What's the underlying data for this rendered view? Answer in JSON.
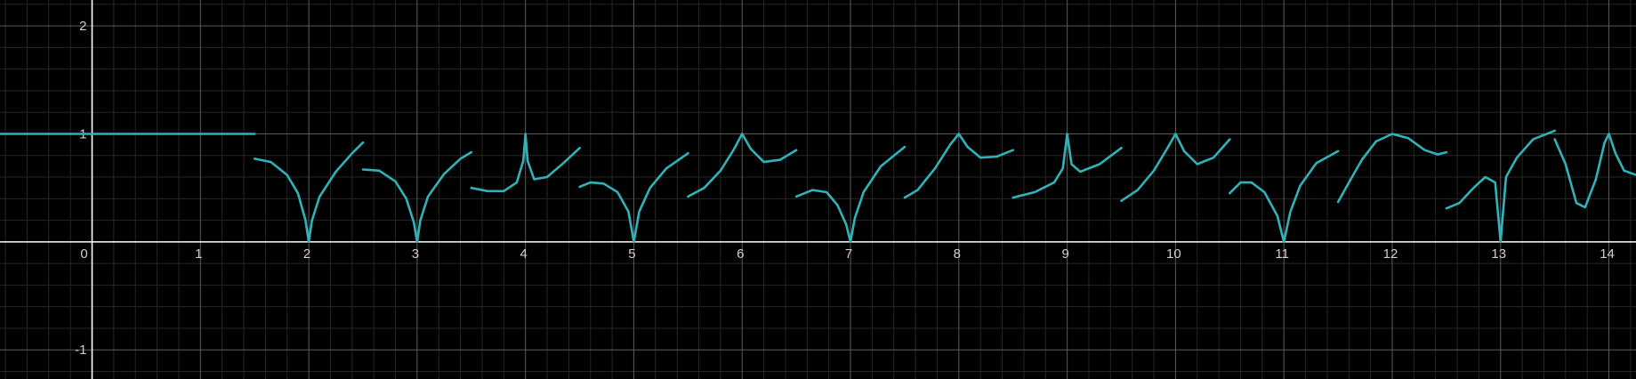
{
  "chart_data": {
    "type": "line",
    "title": "",
    "xlabel": "",
    "ylabel": "",
    "xlim": [
      -0.85,
      14.25
    ],
    "ylim": [
      -1.27,
      2.24
    ],
    "grid": true,
    "background": "#000000",
    "colors": {
      "curve": "#2fb3b9",
      "axis": "#ffffff",
      "major_grid": "#5a5a5a",
      "minor_grid": "#262626"
    },
    "x_ticks": [
      0,
      1,
      2,
      3,
      4,
      5,
      6,
      7,
      8,
      9,
      10,
      11,
      12,
      13,
      14
    ],
    "x_tick_labels": [
      "0",
      "1",
      "2",
      "3",
      "4",
      "5",
      "6",
      "7",
      "8",
      "9",
      "10",
      "11",
      "12",
      "13",
      "14"
    ],
    "y_ticks": [
      -1,
      1,
      2
    ],
    "y_tick_labels": [
      "-1",
      "1",
      "2"
    ],
    "series": [
      {
        "segments": [
          [
            [
              -0.85,
              1.0
            ],
            [
              1.5,
              1.0
            ]
          ],
          [
            [
              1.5,
              0.77
            ],
            [
              1.65,
              0.74
            ],
            [
              1.8,
              0.62
            ],
            [
              1.9,
              0.45
            ],
            [
              1.97,
              0.2
            ],
            [
              2.0,
              0.0
            ],
            [
              2.03,
              0.2
            ],
            [
              2.1,
              0.42
            ],
            [
              2.25,
              0.65
            ],
            [
              2.4,
              0.82
            ],
            [
              2.5,
              0.92
            ]
          ],
          [
            [
              2.5,
              0.67
            ],
            [
              2.65,
              0.66
            ],
            [
              2.8,
              0.56
            ],
            [
              2.9,
              0.4
            ],
            [
              2.97,
              0.18
            ],
            [
              3.0,
              0.0
            ],
            [
              3.03,
              0.2
            ],
            [
              3.1,
              0.42
            ],
            [
              3.25,
              0.63
            ],
            [
              3.4,
              0.77
            ],
            [
              3.5,
              0.83
            ]
          ],
          [
            [
              3.5,
              0.5
            ],
            [
              3.65,
              0.47
            ],
            [
              3.8,
              0.47
            ],
            [
              3.92,
              0.55
            ],
            [
              3.98,
              0.75
            ],
            [
              4.0,
              1.0
            ],
            [
              4.02,
              0.75
            ],
            [
              4.08,
              0.58
            ],
            [
              4.2,
              0.6
            ],
            [
              4.35,
              0.73
            ],
            [
              4.5,
              0.87
            ]
          ],
          [
            [
              4.5,
              0.51
            ],
            [
              4.6,
              0.55
            ],
            [
              4.72,
              0.54
            ],
            [
              4.85,
              0.46
            ],
            [
              4.95,
              0.28
            ],
            [
              5.0,
              0.0
            ],
            [
              5.05,
              0.28
            ],
            [
              5.15,
              0.5
            ],
            [
              5.3,
              0.68
            ],
            [
              5.5,
              0.82
            ]
          ],
          [
            [
              5.5,
              0.42
            ],
            [
              5.65,
              0.5
            ],
            [
              5.8,
              0.66
            ],
            [
              5.92,
              0.85
            ],
            [
              6.0,
              1.0
            ],
            [
              6.08,
              0.86
            ],
            [
              6.2,
              0.74
            ],
            [
              6.35,
              0.76
            ],
            [
              6.5,
              0.85
            ]
          ],
          [
            [
              6.5,
              0.42
            ],
            [
              6.65,
              0.48
            ],
            [
              6.78,
              0.46
            ],
            [
              6.88,
              0.34
            ],
            [
              6.96,
              0.16
            ],
            [
              7.0,
              0.0
            ],
            [
              7.04,
              0.22
            ],
            [
              7.12,
              0.46
            ],
            [
              7.28,
              0.7
            ],
            [
              7.5,
              0.88
            ]
          ],
          [
            [
              7.5,
              0.41
            ],
            [
              7.62,
              0.48
            ],
            [
              7.78,
              0.68
            ],
            [
              7.92,
              0.9
            ],
            [
              8.0,
              1.0
            ],
            [
              8.08,
              0.88
            ],
            [
              8.2,
              0.78
            ],
            [
              8.35,
              0.79
            ],
            [
              8.5,
              0.85
            ]
          ],
          [
            [
              8.5,
              0.41
            ],
            [
              8.7,
              0.46
            ],
            [
              8.88,
              0.55
            ],
            [
              8.96,
              0.68
            ],
            [
              9.0,
              1.0
            ],
            [
              9.04,
              0.72
            ],
            [
              9.12,
              0.65
            ],
            [
              9.3,
              0.72
            ],
            [
              9.5,
              0.87
            ]
          ],
          [
            [
              9.5,
              0.38
            ],
            [
              9.65,
              0.48
            ],
            [
              9.8,
              0.66
            ],
            [
              9.92,
              0.86
            ],
            [
              10.0,
              1.0
            ],
            [
              10.08,
              0.84
            ],
            [
              10.2,
              0.72
            ],
            [
              10.35,
              0.78
            ],
            [
              10.5,
              0.95
            ]
          ],
          [
            [
              10.5,
              0.45
            ],
            [
              10.6,
              0.55
            ],
            [
              10.7,
              0.55
            ],
            [
              10.82,
              0.46
            ],
            [
              10.94,
              0.24
            ],
            [
              11.0,
              0.0
            ],
            [
              11.06,
              0.28
            ],
            [
              11.15,
              0.52
            ],
            [
              11.3,
              0.73
            ],
            [
              11.5,
              0.84
            ]
          ],
          [
            [
              11.5,
              0.37
            ],
            [
              11.6,
              0.55
            ],
            [
              11.72,
              0.76
            ],
            [
              11.85,
              0.93
            ],
            [
              12.0,
              1.0
            ],
            [
              12.15,
              0.96
            ],
            [
              12.3,
              0.85
            ],
            [
              12.42,
              0.81
            ],
            [
              12.5,
              0.83
            ]
          ],
          [
            [
              12.5,
              0.31
            ],
            [
              12.62,
              0.36
            ],
            [
              12.75,
              0.5
            ],
            [
              12.86,
              0.6
            ],
            [
              12.95,
              0.55
            ],
            [
              13.0,
              0.0
            ],
            [
              13.05,
              0.6
            ],
            [
              13.15,
              0.78
            ],
            [
              13.3,
              0.95
            ],
            [
              13.5,
              1.03
            ]
          ],
          [
            [
              13.5,
              0.95
            ],
            [
              13.6,
              0.72
            ],
            [
              13.7,
              0.36
            ],
            [
              13.78,
              0.32
            ],
            [
              13.88,
              0.58
            ],
            [
              13.96,
              0.92
            ],
            [
              14.0,
              1.0
            ],
            [
              14.06,
              0.82
            ],
            [
              14.14,
              0.66
            ],
            [
              14.25,
              0.62
            ]
          ]
        ]
      }
    ]
  }
}
